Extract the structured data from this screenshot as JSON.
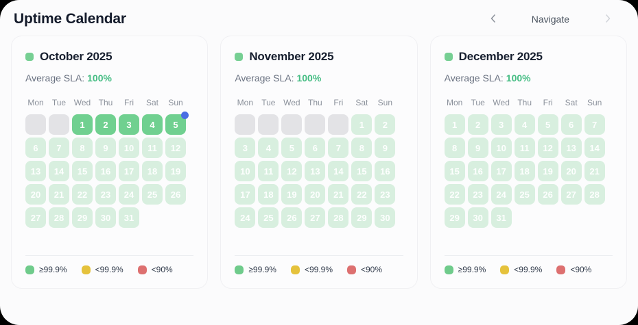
{
  "page": {
    "title": "Uptime Calendar"
  },
  "nav": {
    "label": "Navigate",
    "prev_icon": "chevron-left",
    "next_icon": "chevron-right"
  },
  "sla_label": "Average SLA:",
  "weekdays": [
    "Mon",
    "Tue",
    "Wed",
    "Thu",
    "Fri",
    "Sat",
    "Sun"
  ],
  "legend": [
    {
      "label": "≥99.9%",
      "color": "#6fcb8b"
    },
    {
      "label": "<99.9%",
      "color": "#e5c23c"
    },
    {
      "label": "<90%",
      "color": "#dd7070"
    }
  ],
  "colors": {
    "solid_day": "#70d090",
    "pale_day": "#d8efdf",
    "empty_day": "#e3e3e6",
    "today_dot": "#4a6de3",
    "sla_green": "#46bd84",
    "month_dot": "#76cf93"
  },
  "months": [
    {
      "name": "October 2025",
      "sla_value": "100%",
      "lead_empty": 2,
      "days": 31,
      "solid_through": 5,
      "today": 5
    },
    {
      "name": "November 2025",
      "sla_value": "100%",
      "lead_empty": 5,
      "days": 30,
      "solid_through": 0,
      "today": 0
    },
    {
      "name": "December 2025",
      "sla_value": "100%",
      "lead_empty": 0,
      "days": 31,
      "solid_through": 0,
      "today": 0
    }
  ]
}
